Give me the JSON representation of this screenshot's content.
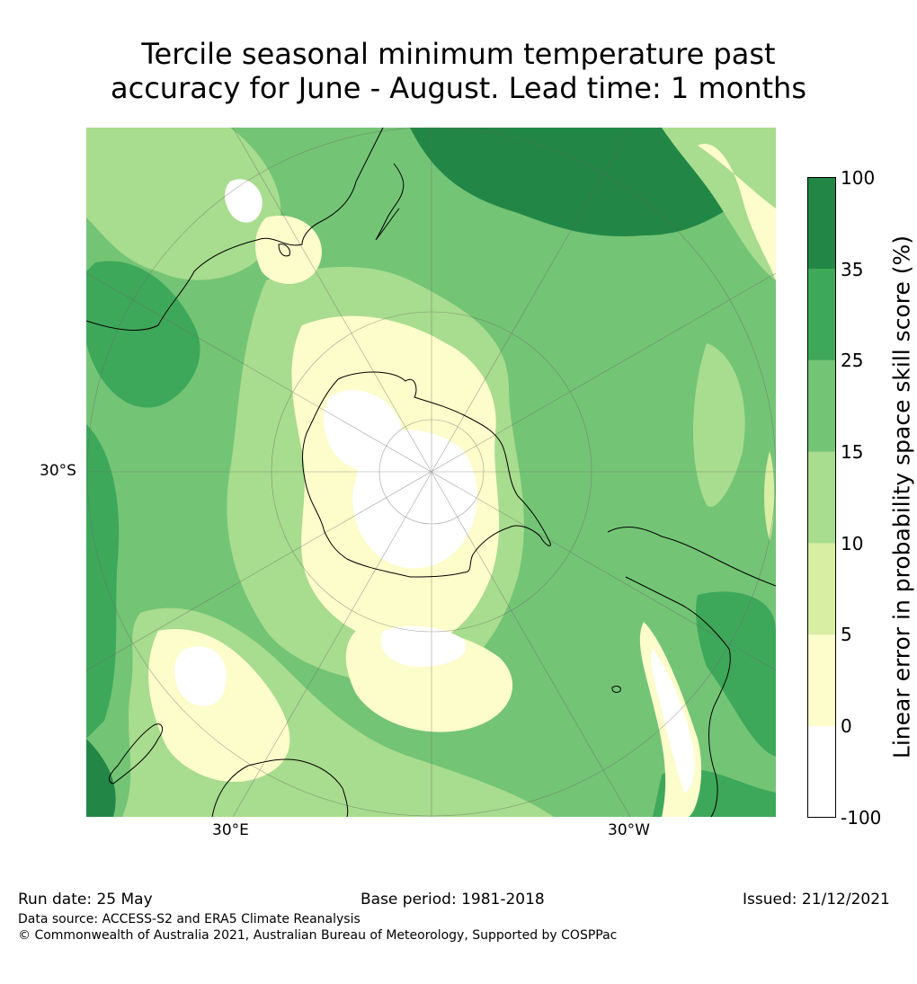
{
  "title": {
    "line1": "Tercile seasonal minimum temperature past",
    "line2": "accuracy for June - August. Lead time: 1 months"
  },
  "map_labels": {
    "lat": "30°S",
    "lon_east": "30°E",
    "lon_west": "30°W"
  },
  "colorbar": {
    "label": "Linear error in probability space skill score (%)",
    "ticks": [
      "100",
      "35",
      "25",
      "15",
      "10",
      "5",
      "0",
      "-100"
    ],
    "colors": [
      "#228746",
      "#3ea85a",
      "#74c476",
      "#a8dc8e",
      "#d8eea3",
      "#fdfccb",
      "#ffffff"
    ]
  },
  "footer": {
    "run_date": "Run date: 25 May",
    "base_period": "Base period: 1981-2018",
    "issued": "Issued: 21/12/2021",
    "data_source": "Data source: ACCESS-S2 and ERA5 Climate Reanalysis",
    "copyright": "© Commonwealth of Australia 2021, Australian Bureau of Meteorology, Supported by COSPPac"
  }
}
